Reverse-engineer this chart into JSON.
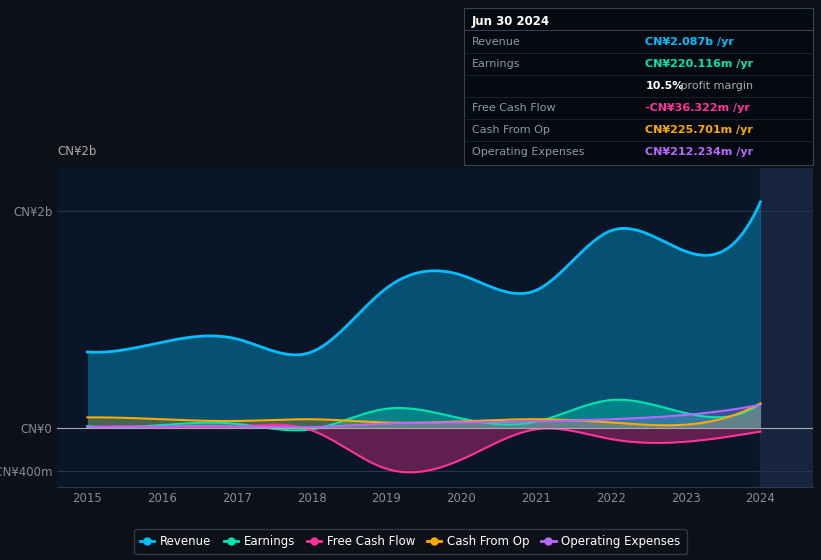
{
  "background_color": "#0d1117",
  "plot_bg_color": "#0a1628",
  "years": [
    2015,
    2016,
    2017,
    2018,
    2019,
    2020,
    2021,
    2022,
    2023,
    2024
  ],
  "revenue": [
    700,
    790,
    820,
    700,
    1290,
    1410,
    1270,
    1820,
    1630,
    2087
  ],
  "earnings": [
    15,
    25,
    35,
    -15,
    175,
    85,
    55,
    255,
    135,
    220
  ],
  "free_cash_flow": [
    5,
    5,
    8,
    -25,
    -380,
    -295,
    -15,
    -105,
    -130,
    -36
  ],
  "cash_from_op": [
    95,
    78,
    62,
    78,
    48,
    58,
    78,
    48,
    28,
    226
  ],
  "operating_expenses": [
    5,
    12,
    12,
    5,
    38,
    48,
    58,
    78,
    118,
    212
  ],
  "revenue_color": "#00bfff",
  "earnings_color": "#00e5b0",
  "free_cash_flow_color": "#ff3399",
  "cash_from_op_color": "#ffaa00",
  "operating_expenses_color": "#bb66ff",
  "ylim_min": -550,
  "ylim_max": 2400,
  "ytick_labels": [
    "-CN¥400m",
    "CN¥0",
    "CN¥2b"
  ],
  "ytick_values": [
    -400,
    0,
    2000
  ],
  "xlabel_years": [
    2015,
    2016,
    2017,
    2018,
    2019,
    2020,
    2021,
    2022,
    2023,
    2024
  ],
  "tooltip": {
    "title": "Jun 30 2024",
    "rows": [
      {
        "label": "Revenue",
        "value": "CN¥2.087b /yr",
        "color": "#00bfff"
      },
      {
        "label": "Earnings",
        "value": "CN¥220.116m /yr",
        "color": "#00e5b0"
      },
      {
        "label": "",
        "value": "10.5% profit margin",
        "color": "#dddddd"
      },
      {
        "label": "Free Cash Flow",
        "value": "-CN¥36.322m /yr",
        "color": "#ff3399"
      },
      {
        "label": "Cash From Op",
        "value": "CN¥225.701m /yr",
        "color": "#ffaa00"
      },
      {
        "label": "Operating Expenses",
        "value": "CN¥212.234m /yr",
        "color": "#bb66ff"
      }
    ]
  },
  "legend_items": [
    {
      "label": "Revenue",
      "color": "#00bfff"
    },
    {
      "label": "Earnings",
      "color": "#00e5b0"
    },
    {
      "label": "Free Cash Flow",
      "color": "#ff3399"
    },
    {
      "label": "Cash From Op",
      "color": "#ffaa00"
    },
    {
      "label": "Operating Expenses",
      "color": "#bb66ff"
    }
  ]
}
